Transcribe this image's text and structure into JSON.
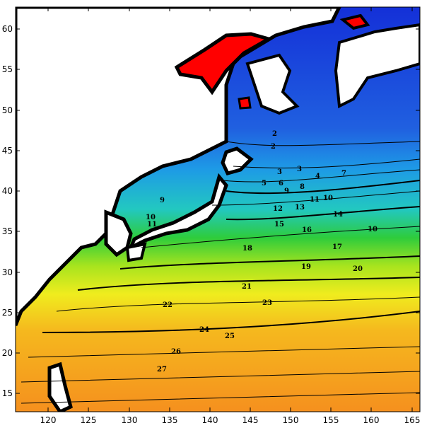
{
  "map": {
    "lon_ticks": [
      "120",
      "125",
      "130",
      "135",
      "140",
      "145",
      "150",
      "155",
      "160",
      "165"
    ],
    "lat_ticks": [
      "60",
      "55",
      "50",
      "45",
      "40",
      "35",
      "30",
      "25",
      "20",
      "15"
    ],
    "lon_range": [
      116,
      166
    ],
    "lat_range": [
      13,
      63
    ],
    "contour_labels": [
      "2",
      "2",
      "3",
      "3",
      "4",
      "5",
      "6",
      "7",
      "8",
      "9",
      "9",
      "10",
      "10",
      "10",
      "11",
      "11",
      "12",
      "13",
      "14",
      "15",
      "16",
      "17",
      "18",
      "19",
      "20",
      "21",
      "22",
      "23",
      "24",
      "25",
      "26",
      "27"
    ],
    "colors": {
      "land": "#ffffff",
      "coastline": "#000000",
      "anomaly_fill": "#ff0000",
      "band_cold": "#0a2cd8",
      "band_cool": "#1e7ae0",
      "band_cyan": "#26c8e6",
      "band_teal": "#1ec8a0",
      "band_green": "#2ec81e",
      "band_lime": "#b4e61e",
      "band_yellow": "#f0f01e",
      "band_orange_light": "#f5b41e",
      "band_orange": "#f58c1e"
    }
  }
}
